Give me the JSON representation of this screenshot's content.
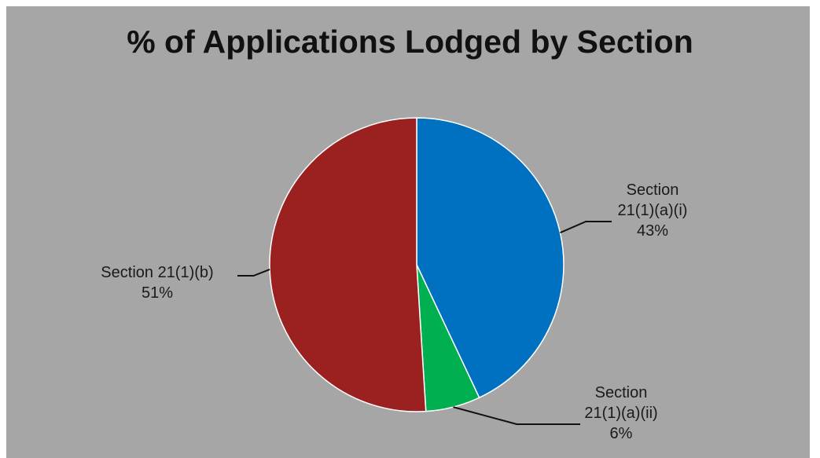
{
  "chart_data": {
    "type": "pie",
    "title": "% of Applications Lodged by Section",
    "slices": [
      {
        "label_lines": [
          "Section",
          "21(1)(a)(i)"
        ],
        "value": 43,
        "value_label": "43%",
        "color": "#0070c0"
      },
      {
        "label_lines": [
          "Section",
          "21(1)(a)(ii)"
        ],
        "value": 6,
        "value_label": "6%",
        "color": "#00b050"
      },
      {
        "label_lines": [
          "Section 21(1)(b)"
        ],
        "value": 51,
        "value_label": "51%",
        "color": "#9b2121"
      }
    ],
    "legend": "none",
    "start_angle": "12 o'clock",
    "direction": "clockwise"
  }
}
